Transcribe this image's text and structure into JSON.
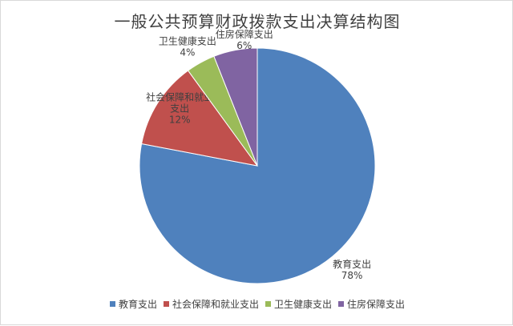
{
  "chart_data": {
    "type": "pie",
    "title": "一般公共预算财政拨款支出决算结构图",
    "categories": [
      "教育支出",
      "社会保障和就业支出",
      "卫生健康支出",
      "住房保障支出"
    ],
    "values": [
      78,
      12,
      4,
      6
    ],
    "value_labels": [
      "78%",
      "12%",
      "4%",
      "6%"
    ],
    "slice_labels": [
      [
        "教育支出"
      ],
      [
        "社会保障和就业",
        "支出"
      ],
      [
        "卫生健康支出"
      ],
      [
        "住房保障支出"
      ]
    ],
    "colors": [
      "#4f81bd",
      "#c0504d",
      "#9bbb59",
      "#8064a2"
    ],
    "legend": "bottom"
  }
}
